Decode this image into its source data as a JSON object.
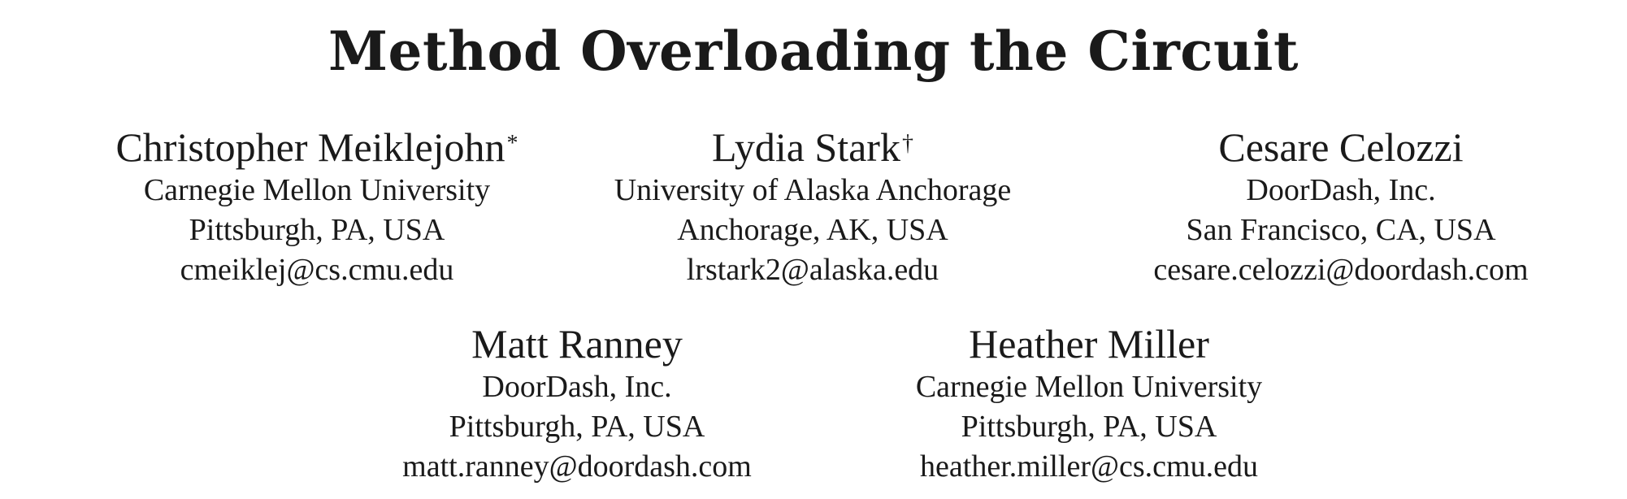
{
  "title": "Method Overloading the Circuit",
  "authors": [
    {
      "name": "Christopher Meiklejohn",
      "mark": "*",
      "affiliation": "Carnegie Mellon University",
      "location": "Pittsburgh, PA, USA",
      "email": "cmeiklej@cs.cmu.edu"
    },
    {
      "name": "Lydia Stark",
      "mark": "†",
      "affiliation": "University of Alaska Anchorage",
      "location": "Anchorage, AK, USA",
      "email": "lrstark2@alaska.edu"
    },
    {
      "name": "Cesare Celozzi",
      "mark": "",
      "affiliation": "DoorDash, Inc.",
      "location": "San Francisco, CA, USA",
      "email": "cesare.celozzi@doordash.com"
    },
    {
      "name": "Matt Ranney",
      "mark": "",
      "affiliation": "DoorDash, Inc.",
      "location": "Pittsburgh, PA, USA",
      "email": "matt.ranney@doordash.com"
    },
    {
      "name": "Heather Miller",
      "mark": "",
      "affiliation": "Carnegie Mellon University",
      "location": "Pittsburgh, PA, USA",
      "email": "heather.miller@cs.cmu.edu"
    }
  ]
}
